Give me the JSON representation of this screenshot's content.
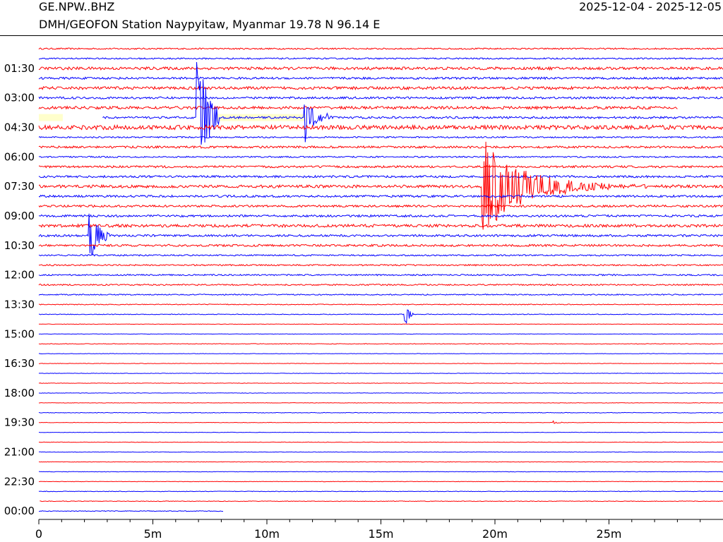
{
  "header": {
    "station_code": "GE.NPW..BHZ",
    "station_info": "DMH/GEOFON Station Naypyitaw, Myanmar  19.78 N 96.14 E",
    "date_range": "2025-12-04 - 2025-12-05"
  },
  "colors": {
    "trace_a": "#ff0000",
    "trace_b": "#0000ff",
    "gap_fill": "#ffffcc",
    "axis": "#000000",
    "background": "#ffffff"
  },
  "chart_data": {
    "type": "line",
    "title": "",
    "xlabel": "",
    "ylabel": "",
    "x_unit": "minutes",
    "xlim": [
      0,
      30
    ],
    "x_ticks": [
      {
        "value": 0,
        "label": "0"
      },
      {
        "value": 5,
        "label": "5m"
      },
      {
        "value": 10,
        "label": "10m"
      },
      {
        "value": 15,
        "label": "15m"
      },
      {
        "value": 20,
        "label": "20m"
      },
      {
        "value": 25,
        "label": "25m"
      }
    ],
    "row_interval_minutes": 30,
    "row_count": 48,
    "row_colors": [
      "trace_a",
      "trace_b"
    ],
    "y_tick_labels": [
      {
        "row": 2,
        "label": "01:30"
      },
      {
        "row": 5,
        "label": "03:00"
      },
      {
        "row": 8,
        "label": "04:30"
      },
      {
        "row": 11,
        "label": "06:00"
      },
      {
        "row": 14,
        "label": "07:30"
      },
      {
        "row": 17,
        "label": "09:00"
      },
      {
        "row": 20,
        "label": "10:30"
      },
      {
        "row": 23,
        "label": "12:00"
      },
      {
        "row": 26,
        "label": "13:30"
      },
      {
        "row": 29,
        "label": "15:00"
      },
      {
        "row": 32,
        "label": "16:30"
      },
      {
        "row": 35,
        "label": "18:00"
      },
      {
        "row": 38,
        "label": "19:30"
      },
      {
        "row": 41,
        "label": "21:00"
      },
      {
        "row": 44,
        "label": "22:30"
      },
      {
        "row": 47,
        "label": "00:00"
      }
    ],
    "row_noise_levels": [
      1,
      1,
      2,
      1.5,
      2,
      1.5,
      2,
      1.5,
      3,
      1,
      1.5,
      1,
      1.5,
      1.5,
      2,
      1.5,
      1.5,
      1.5,
      2,
      1.5,
      1.5,
      1,
      1,
      1,
      1,
      0.8,
      0.6,
      0.5,
      0.3,
      0.3,
      0.4,
      0.3,
      0.3,
      0.3,
      0.3,
      0.3,
      0.3,
      0.4,
      0.3,
      0.3,
      0.3,
      0.3,
      0.3,
      0.3,
      0.3,
      0.4,
      0.4,
      0.5
    ],
    "data_gaps": [
      {
        "row": 6,
        "x_start": 28,
        "x_end": 30
      },
      {
        "row": 7,
        "x_start": 0,
        "x_end": 2.8
      },
      {
        "row": 46,
        "x_start": 0,
        "x_end": 0.02
      },
      {
        "row": 47,
        "x_start": 8.1,
        "x_end": 30
      }
    ],
    "shaded_gaps": [
      {
        "row": 7,
        "x_start": 0,
        "x_end": 1.05
      },
      {
        "row": 7,
        "x_start": 7.8,
        "x_end": 11.7
      }
    ],
    "events": [
      {
        "row": 7,
        "x_start": 6.9,
        "x_end": 7.9,
        "amplitude": 100,
        "decay_minutes": 0.5
      },
      {
        "row": 7,
        "x_start": 11.6,
        "x_end": 12.4,
        "amplitude": 45,
        "decay_minutes": 0.35
      },
      {
        "row": 7,
        "x_start": 12.6,
        "x_end": 12.85,
        "amplitude": 8,
        "decay_minutes": 0.1
      },
      {
        "row": 14,
        "x_start": 19.4,
        "x_end": 28.5,
        "amplitude": 70,
        "decay_minutes": 1.8
      },
      {
        "row": 19,
        "x_start": 2.2,
        "x_end": 3.1,
        "amplitude": 45,
        "decay_minutes": 0.4
      },
      {
        "row": 27,
        "x_start": 16.0,
        "x_end": 16.4,
        "amplitude": 30,
        "decay_minutes": 0.15
      },
      {
        "row": 38,
        "x_start": 22.55,
        "x_end": 23.1,
        "amplitude": 4,
        "decay_minutes": 0.15
      }
    ]
  }
}
